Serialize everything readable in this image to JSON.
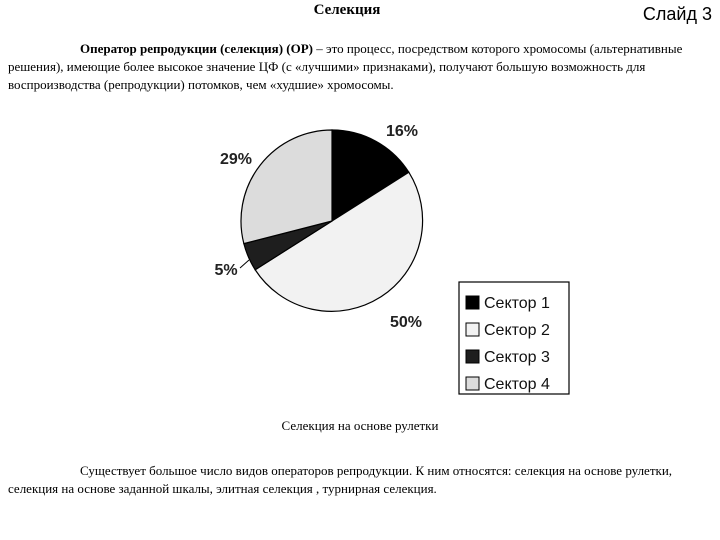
{
  "header": {
    "title": "Селекция",
    "slide_label": "Слайд 3"
  },
  "intro": {
    "term": "Оператор репродукции (селекция) (ОР)",
    "text": " – это процесс, посредством которого хромосомы (альтернативные решения), имеющие более высокое значение ЦФ (с «лучшими» признаками), получают большую возможность для воспроизводства (репродукции) потомков, чем «худшие» хромосомы."
  },
  "chart_data": {
    "type": "pie",
    "categories": [
      "Сектор 1",
      "Сектор 2",
      "Сектор 3",
      "Сектор 4"
    ],
    "values": [
      16,
      50,
      5,
      29
    ],
    "labels": [
      "16%",
      "50%",
      "5%",
      "29%"
    ],
    "colors": [
      "#000000",
      "#f2f2f2",
      "#1e1e1e",
      "#dcdcdc"
    ],
    "legend": "bottom-right"
  },
  "caption": "Селекция на основе рулетки",
  "outro": "Существует большое число видов операторов репродукции. К ним относятся: селекция на основе рулетки, селекция на основе заданной шкалы, элитная селекция , турнирная селекция."
}
